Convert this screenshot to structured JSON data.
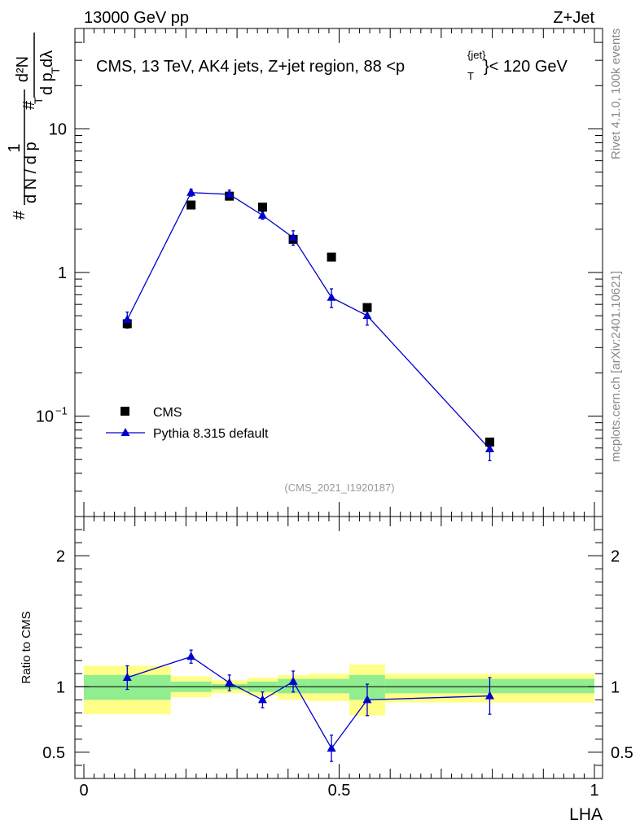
{
  "header": {
    "left": "13000 GeV pp",
    "right": "Z+Jet"
  },
  "side": {
    "rivet": "Rivet 4.1.0,  100k events",
    "mcplots": "mcplots.cern.ch [arXiv:2401.10621]"
  },
  "chart_data": {
    "type": "line",
    "title_prefix": "CMS, 13 TeV, AK4 jets, Z+jet region, 88 <p",
    "title_sup": "{jet}",
    "title_sub": "T",
    "title_suffix": "}< 120 GeV",
    "analysis_tag": "(CMS_2021_I1920187)",
    "xlabel": "LHA",
    "xlim": [
      0,
      1
    ],
    "x_ticks": [
      "0",
      "0.5",
      "1"
    ],
    "x_tick_values": [
      0,
      0.5,
      1
    ],
    "main": {
      "yscale": "log",
      "ylim": [
        0.02,
        50
      ],
      "y_ticks": [
        {
          "value": 10,
          "label": "10"
        },
        {
          "value": 1,
          "label": "1"
        },
        {
          "value": 0.1,
          "label": "10",
          "sup": "−1"
        }
      ],
      "ylabel": {
        "frac1_num": "1",
        "frac1_den": "d N / d p",
        "frac1_den_sub": "T",
        "frac2_num": "d²N",
        "frac2_den": "d p",
        "frac2_den_sub": "T",
        "frac2_den_tail": " dλ",
        "hash": "#"
      }
    },
    "bins": [
      {
        "lo": 0.0,
        "hi": 0.17
      },
      {
        "lo": 0.17,
        "hi": 0.25
      },
      {
        "lo": 0.25,
        "hi": 0.32
      },
      {
        "lo": 0.32,
        "hi": 0.38
      },
      {
        "lo": 0.38,
        "hi": 0.44
      },
      {
        "lo": 0.44,
        "hi": 0.52
      },
      {
        "lo": 0.52,
        "hi": 0.59
      },
      {
        "lo": 0.59,
        "hi": 1.0
      }
    ],
    "series": [
      {
        "name": "CMS",
        "marker": "square",
        "color": "#000000",
        "x": [
          0.085,
          0.21,
          0.285,
          0.35,
          0.41,
          0.485,
          0.555,
          0.795
        ],
        "y": [
          0.44,
          2.95,
          3.4,
          2.85,
          1.7,
          1.28,
          0.57,
          0.066
        ]
      },
      {
        "name": "Pythia 8.315 default",
        "marker": "triangle",
        "color": "#0000cc",
        "x": [
          0.085,
          0.21,
          0.285,
          0.35,
          0.41,
          0.485,
          0.555,
          0.795
        ],
        "y": [
          0.47,
          3.6,
          3.5,
          2.5,
          1.75,
          0.67,
          0.5,
          0.059
        ],
        "yerr": [
          0.06,
          0.2,
          0.25,
          0.15,
          0.2,
          0.1,
          0.07,
          0.01
        ]
      }
    ],
    "ratio": {
      "ylabel": "Ratio to CMS",
      "ylim": [
        0.3,
        2.3
      ],
      "y_ticks": [
        "0.5",
        "1",
        "2"
      ],
      "y_tick_values": [
        0.5,
        1,
        2
      ],
      "values": [
        1.07,
        1.23,
        1.03,
        0.9,
        1.04,
        0.53,
        0.9,
        0.93
      ],
      "errors": [
        0.09,
        0.05,
        0.06,
        0.06,
        0.08,
        0.1,
        0.12,
        0.14
      ],
      "band_inner": [
        [
          0.9,
          1.09
        ],
        [
          0.96,
          1.04
        ],
        [
          0.98,
          1.02
        ],
        [
          0.96,
          1.04
        ],
        [
          0.95,
          1.06
        ],
        [
          0.95,
          1.06
        ],
        [
          0.9,
          1.09
        ],
        [
          0.95,
          1.06
        ]
      ],
      "band_outer": [
        [
          0.79,
          1.16
        ],
        [
          0.92,
          1.08
        ],
        [
          0.95,
          1.05
        ],
        [
          0.93,
          1.07
        ],
        [
          0.9,
          1.09
        ],
        [
          0.89,
          1.1
        ],
        [
          0.78,
          1.17
        ],
        [
          0.88,
          1.1
        ]
      ],
      "inner_color": "#90ee90",
      "outer_color": "#ffff88"
    }
  }
}
